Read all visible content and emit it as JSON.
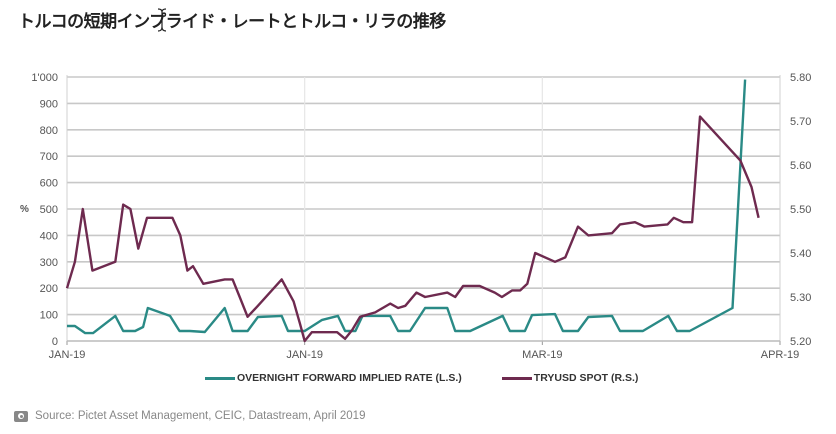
{
  "title": "トルコの短期インプライド・レートとトルコ・リラの推移",
  "source": "Source: Pictet Asset Management, CEIC, Datastream, April 2019",
  "icons": {
    "source_icon": "camera-icon",
    "cursor": "text-cursor-icon"
  },
  "colors": {
    "overnight": "#2a8a86",
    "tryusd": "#6e2a4f",
    "grid": "#c8c8c8",
    "vgrid": "#e6e6e6"
  },
  "chart_data": {
    "type": "line",
    "title": "トルコの短期インプライド・レートとトルコ・リラの推移",
    "xlabel": "",
    "ylabel": "%",
    "ylabel_right": "",
    "xlim": [
      0,
      90
    ],
    "ylim": [
      0,
      1000
    ],
    "ylim_right": [
      5.2,
      5.8
    ],
    "grid": true,
    "legend_position": "bottom",
    "x_ticks": [
      {
        "x": 0,
        "label": "JAN-19"
      },
      {
        "x": 30,
        "label": "JAN-19"
      },
      {
        "x": 60,
        "label": "MAR-19"
      },
      {
        "x": 90,
        "label": "APR-19"
      }
    ],
    "y_ticks": [
      {
        "y": 0,
        "label": "0"
      },
      {
        "y": 100,
        "label": "100"
      },
      {
        "y": 200,
        "label": "200"
      },
      {
        "y": 300,
        "label": "300"
      },
      {
        "y": 400,
        "label": "400"
      },
      {
        "y": 500,
        "label": "500"
      },
      {
        "y": 600,
        "label": "600"
      },
      {
        "y": 700,
        "label": "700"
      },
      {
        "y": 800,
        "label": "800"
      },
      {
        "y": 900,
        "label": "900"
      },
      {
        "y": 1000,
        "label": "1'000"
      }
    ],
    "y_ticks_right": [
      {
        "y": 5.2,
        "label": "5.20"
      },
      {
        "y": 5.3,
        "label": "5.30"
      },
      {
        "y": 5.4,
        "label": "5.40"
      },
      {
        "y": 5.5,
        "label": "5.50"
      },
      {
        "y": 5.6,
        "label": "5.60"
      },
      {
        "y": 5.7,
        "label": "5.70"
      },
      {
        "y": 5.8,
        "label": "5.80"
      }
    ],
    "series": [
      {
        "name": "OVERNIGHT FORWARD IMPLIED RATE (L.S.)",
        "axis": "left",
        "color": "#2a8a86",
        "x": [
          0,
          1,
          2.3,
          3.3,
          6.1,
          7.1,
          8.6,
          9.6,
          10.2,
          13,
          14.2,
          15.5,
          17.4,
          19.9,
          20.9,
          22.8,
          24.1,
          27.1,
          27.9,
          30,
          32.2,
          34.2,
          35.1,
          36.4,
          37.3,
          40.8,
          41.8,
          43.3,
          45.2,
          48,
          49,
          50.9,
          55,
          55.9,
          57.8,
          58.7,
          61.6,
          62.6,
          64.5,
          65.8,
          68.8,
          69.8,
          72.7,
          75.9,
          77,
          78.6,
          84,
          85.6
        ],
        "y": [
          57,
          57,
          30,
          30,
          95,
          38,
          38,
          53,
          125,
          95,
          38,
          38,
          34,
          125,
          38,
          38,
          91,
          95,
          38,
          38,
          80,
          95,
          38,
          38,
          95,
          95,
          38,
          38,
          125,
          125,
          38,
          38,
          95,
          38,
          38,
          98,
          102,
          38,
          38,
          91,
          95,
          38,
          38,
          95,
          38,
          38,
          125,
          990
        ]
      },
      {
        "name": "TRYUSD SPOT (R.S.)",
        "axis": "right",
        "color": "#6e2a4f",
        "x": [
          0,
          1,
          2,
          3.2,
          6.1,
          7.1,
          8,
          9,
          10.1,
          13.3,
          14.3,
          15.2,
          15.9,
          17.2,
          19.9,
          20.9,
          21.8,
          22.8,
          24.1,
          27.1,
          28.6,
          29.4,
          30,
          30.9,
          34.1,
          35.1,
          36,
          37,
          38.9,
          40.8,
          41.8,
          42.7,
          44.1,
          45.2,
          48,
          49,
          50,
          52.1,
          54,
          54.9,
          56.2,
          57.2,
          58.1,
          59.1,
          61.6,
          62.9,
          64.5,
          65.8,
          68.8,
          69.8,
          71.7,
          72.9,
          75.8,
          76.6,
          77.8,
          78.9,
          79.9,
          85,
          86.4,
          87.3
        ],
        "y": [
          5.32,
          5.38,
          5.5,
          5.36,
          5.38,
          5.51,
          5.5,
          5.41,
          5.48,
          5.48,
          5.44,
          5.36,
          5.37,
          5.33,
          5.34,
          5.34,
          5.3,
          5.255,
          5.28,
          5.34,
          5.29,
          5.24,
          5.2,
          5.22,
          5.22,
          5.205,
          5.225,
          5.255,
          5.265,
          5.285,
          5.275,
          5.28,
          5.31,
          5.3,
          5.31,
          5.3,
          5.325,
          5.325,
          5.31,
          5.3,
          5.315,
          5.315,
          5.33,
          5.4,
          5.38,
          5.39,
          5.46,
          5.44,
          5.445,
          5.465,
          5.47,
          5.46,
          5.465,
          5.48,
          5.47,
          5.47,
          5.71,
          5.61,
          5.55,
          5.48
        ]
      }
    ]
  }
}
